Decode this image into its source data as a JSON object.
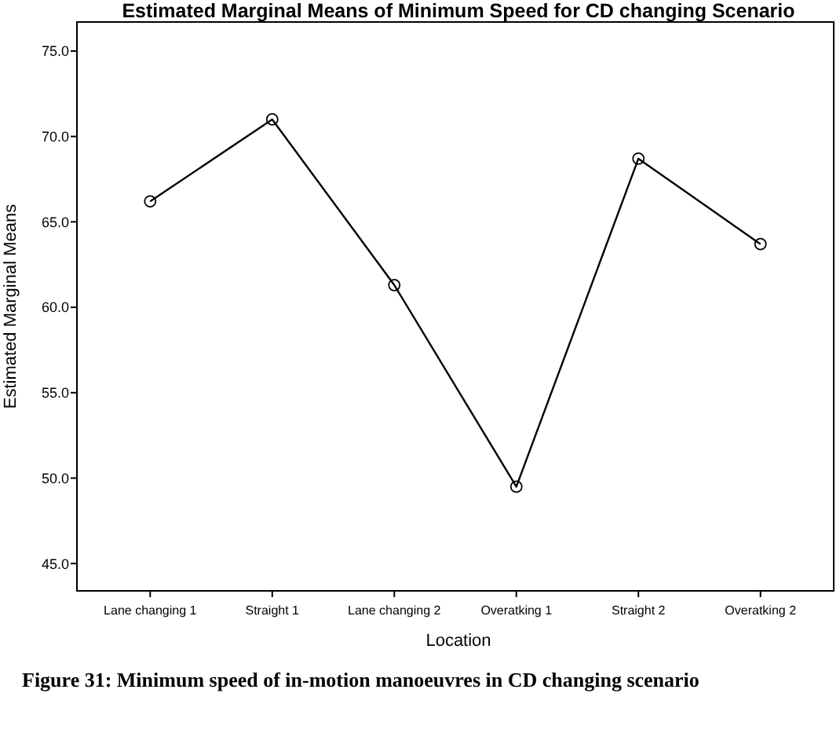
{
  "chart_data": {
    "type": "line",
    "title": "Estimated Marginal Means of Minimum Speed for CD changing Scenario",
    "xlabel": "Location",
    "ylabel": "Estimated Marginal Means",
    "categories": [
      "Lane changing 1",
      "Straight 1",
      "Lane changing 2",
      "Overatking 1",
      "Straight 2",
      "Overatking 2"
    ],
    "series": [
      {
        "color": "#000000",
        "values": [
          66.2,
          71.0,
          61.3,
          49.5,
          68.7,
          63.7
        ]
      }
    ],
    "ylim": [
      43.4,
      76.7
    ],
    "yticks": [
      {
        "value": 45,
        "label": "45.0"
      },
      {
        "value": 50,
        "label": "50.0"
      },
      {
        "value": 55,
        "label": "55.0"
      },
      {
        "value": 60,
        "label": "60.0"
      },
      {
        "value": 65,
        "label": "65.0"
      },
      {
        "value": 70,
        "label": "70.0"
      },
      {
        "value": 75,
        "label": "75.0"
      }
    ],
    "grid": false,
    "marker": "circle",
    "line_style": "solid",
    "annotations": [
      "Figure 31: Minimum speed of in-motion manoeuvres in CD changing scenario"
    ]
  }
}
